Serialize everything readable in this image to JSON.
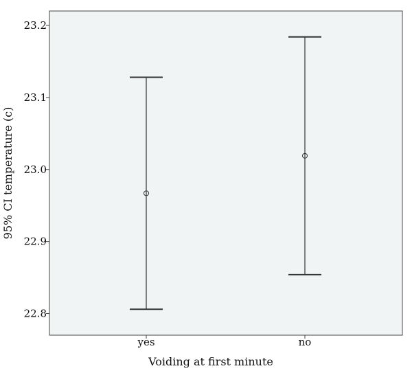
{
  "chart_data": {
    "type": "errorbar",
    "title": "",
    "xlabel": "Voiding at first minute",
    "ylabel": "95% CI temperature (c)",
    "categories": [
      "yes",
      "no"
    ],
    "means": [
      22.967,
      23.019
    ],
    "lower": [
      22.806,
      22.854
    ],
    "upper": [
      23.128,
      23.184
    ],
    "ylim": [
      22.77,
      23.22
    ],
    "yticks": [
      "22.8",
      "22.9",
      "23.0",
      "23.1",
      "23.2"
    ],
    "grid": false,
    "legend": "none",
    "colors": {
      "plot_background": "#f1f4f4",
      "frame": "#444444",
      "marks": "#333333"
    }
  }
}
